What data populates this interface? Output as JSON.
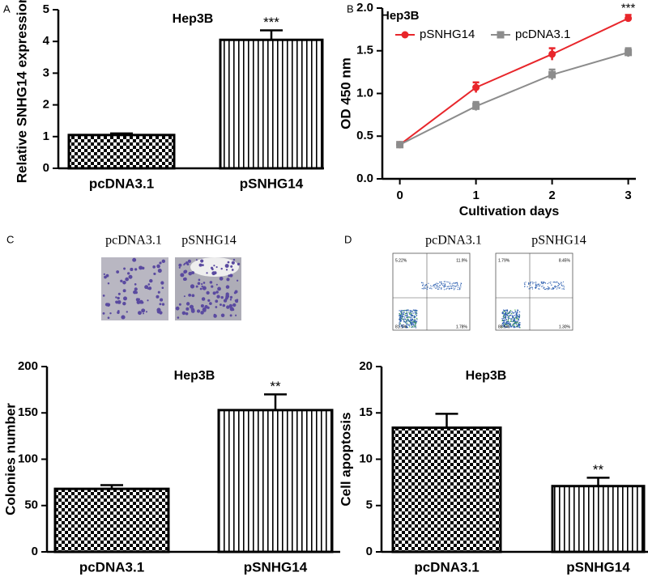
{
  "chart_data": [
    {
      "type": "bar",
      "panel": "A",
      "title": "Hep3B",
      "ylabel": "Relative SNHG14 expression",
      "categories": [
        "pcDNA3.1",
        "pSNHG14"
      ],
      "values": [
        1.05,
        4.05
      ],
      "errors": [
        0.05,
        0.3
      ],
      "patterns": [
        "checker",
        "stripes"
      ],
      "ylim": [
        0,
        5
      ],
      "yticks": [
        0,
        1,
        2,
        3,
        4,
        5
      ],
      "annotations": [
        {
          "text": "***",
          "x": "pSNHG14"
        }
      ]
    },
    {
      "type": "line",
      "panel": "B",
      "title": "Hep3B",
      "xlabel": "Cultivation days",
      "ylabel": "OD 450 nm",
      "x": [
        0,
        1,
        2,
        3
      ],
      "xlim": [
        -0.23,
        3.1
      ],
      "xticks": [
        0,
        1,
        2,
        3
      ],
      "ylim": [
        0,
        2
      ],
      "yticks": [
        {
          "value": 0,
          "label": "0.0"
        },
        {
          "value": 0.5,
          "label": "0.5"
        },
        {
          "value": 1,
          "label": "1.0"
        },
        {
          "value": 1.5,
          "label": "1.5"
        },
        {
          "value": 2,
          "label": "2.0"
        }
      ],
      "series": [
        {
          "name": "pSNHG14",
          "color": "#e8262b",
          "marker": "circle",
          "values": [
            0.4,
            1.07,
            1.46,
            1.88
          ],
          "errors": [
            0.03,
            0.06,
            0.07,
            0.04
          ]
        },
        {
          "name": "pcDNA3.1",
          "color": "#8c8c8c",
          "marker": "square",
          "values": [
            0.4,
            0.85,
            1.22,
            1.48
          ],
          "errors": [
            0.03,
            0.05,
            0.06,
            0.05
          ]
        }
      ],
      "annotations": [
        {
          "text": "***",
          "x": 3
        }
      ]
    },
    {
      "type": "bar",
      "title": "Hep3B",
      "ylabel": "Colonies number",
      "categories": [
        "pcDNA3.1",
        "pSNHG14"
      ],
      "values": [
        68,
        153
      ],
      "errors": [
        4,
        17
      ],
      "patterns": [
        "checker",
        "stripes"
      ],
      "ylim": [
        0,
        200
      ],
      "yticks": [
        0,
        50,
        100,
        150,
        200
      ],
      "annotations": [
        {
          "text": "**",
          "x": "pSNHG14"
        }
      ]
    },
    {
      "type": "bar",
      "title": "Hep3B",
      "ylabel": "Cell apoptosis",
      "categories": [
        "pcDNA3.1",
        "pSNHG14"
      ],
      "values": [
        13.4,
        7.1
      ],
      "errors": [
        1.5,
        0.9
      ],
      "patterns": [
        "checker",
        "stripes"
      ],
      "ylim": [
        0,
        20
      ],
      "yticks": [
        0,
        5,
        10,
        15,
        20
      ],
      "annotations": [
        {
          "text": "**",
          "x": "pSNHG14"
        }
      ]
    }
  ],
  "images": [
    {
      "panel": "C",
      "captions": [
        "pcDNA3.1",
        "pSNHG14"
      ]
    },
    {
      "panel": "D",
      "captions": [
        "pcDNA3.1",
        "pSNHG14"
      ],
      "quadrants": [
        [
          "5.22%",
          "11.9%",
          "1.78%",
          "81.1%"
        ],
        [
          "1.79%",
          "8.45%",
          "1.30%",
          "88.5%"
        ]
      ]
    }
  ]
}
